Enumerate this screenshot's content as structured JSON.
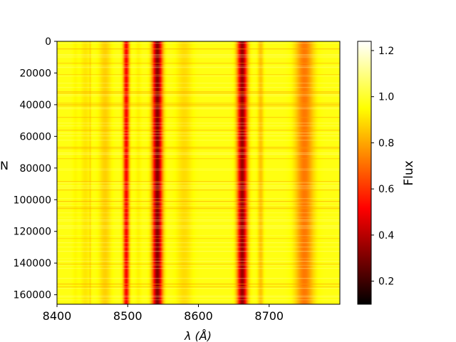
{
  "chart_data": {
    "type": "heatmap",
    "title": "",
    "xlabel": "λ (Å)",
    "ylabel": "N",
    "xlim": [
      8400,
      8800
    ],
    "ylim": [
      166000,
      0
    ],
    "x_ticks": [
      8400,
      8500,
      8600,
      8700
    ],
    "y_ticks": [
      0,
      20000,
      40000,
      60000,
      80000,
      100000,
      120000,
      140000,
      160000
    ],
    "colorbar": {
      "label": "Flux",
      "colormap": "hot",
      "vmin": 0.1,
      "vmax": 1.24,
      "ticks": [
        0.2,
        0.4,
        0.6,
        0.8,
        1.0,
        1.2
      ]
    },
    "absorption_lines": [
      {
        "wavelength": 8498,
        "depth": 0.45,
        "width": 3
      },
      {
        "wavelength": 8542,
        "depth": 0.65,
        "width": 5
      },
      {
        "wavelength": 8662,
        "depth": 0.62,
        "width": 5
      },
      {
        "wavelength": 8750,
        "depth": 0.25,
        "width": 9
      },
      {
        "wavelength": 8688,
        "depth": 0.12,
        "width": 3
      },
      {
        "wavelength": 8468,
        "depth": 0.1,
        "width": 6
      },
      {
        "wavelength": 8440,
        "depth": 0.06,
        "width": 5
      },
      {
        "wavelength": 8580,
        "depth": 0.08,
        "width": 8
      },
      {
        "wavelength": 8515,
        "depth": 0.04,
        "width": 3
      },
      {
        "wavelength": 8426,
        "depth": 0.03,
        "width": 3
      },
      {
        "wavelength": 8447,
        "depth": 0.06,
        "width": 1
      }
    ],
    "continuum_flux": 0.97,
    "grid": false,
    "legend": "none"
  }
}
